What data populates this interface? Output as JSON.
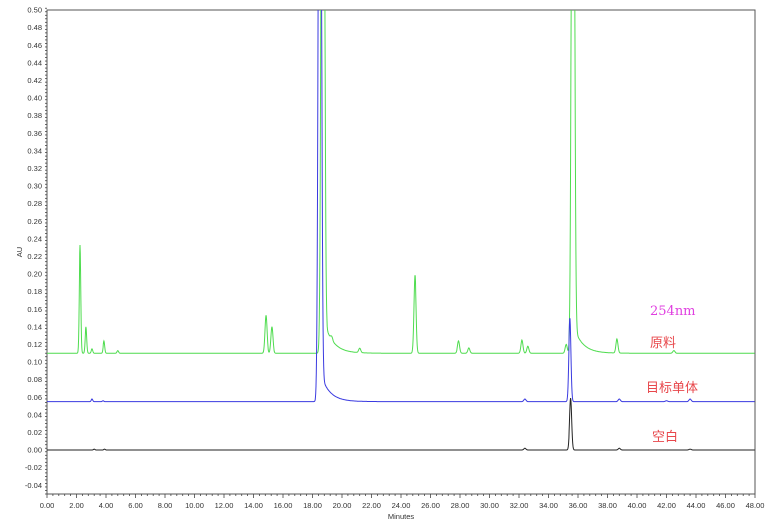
{
  "chart_data": {
    "type": "line",
    "xlabel": "Minutes",
    "ylabel": "AU",
    "xlim": [
      0,
      48
    ],
    "ylim": [
      -0.05,
      0.5
    ],
    "x_ticks": [
      0,
      2,
      4,
      6,
      8,
      10,
      12,
      14,
      16,
      18,
      20,
      22,
      24,
      26,
      28,
      30,
      32,
      34,
      36,
      38,
      40,
      42,
      44,
      46,
      48
    ],
    "y_ticks": [
      -0.04,
      -0.02,
      0.0,
      0.02,
      0.04,
      0.06,
      0.08,
      0.1,
      0.12,
      0.14,
      0.16,
      0.18,
      0.2,
      0.22,
      0.24,
      0.26,
      0.28,
      0.3,
      0.32,
      0.34,
      0.36,
      0.38,
      0.4,
      0.42,
      0.44,
      0.46,
      0.48,
      0.5
    ],
    "tick_decimals": 2,
    "grid": false,
    "annotations": [
      {
        "text": "254nm",
        "color": "#e040e0"
      },
      {
        "text": "原料",
        "color": "#e8474b"
      },
      {
        "text": "目标单体",
        "color": "#e8474b"
      },
      {
        "text": "空白",
        "color": "#e8474b"
      }
    ],
    "series": [
      {
        "label": "原料",
        "color": "#4fdc4f",
        "baseline": 0.11,
        "peaks": [
          [
            2.24,
            0.233
          ],
          [
            2.64,
            0.14
          ],
          [
            3.05,
            0.115
          ],
          [
            3.86,
            0.124
          ],
          [
            4.8,
            0.113
          ],
          [
            14.85,
            0.153
          ],
          [
            15.25,
            0.14
          ],
          [
            18.7,
            1.5
          ],
          [
            19.3,
            0.114
          ],
          [
            21.2,
            0.115
          ],
          [
            24.95,
            0.199
          ],
          [
            27.9,
            0.124
          ],
          [
            28.6,
            0.116
          ],
          [
            32.2,
            0.125
          ],
          [
            32.6,
            0.118
          ],
          [
            35.2,
            0.12
          ],
          [
            35.66,
            1.2
          ],
          [
            38.64,
            0.126
          ],
          [
            42.5,
            0.113
          ]
        ]
      },
      {
        "label": "目标单体",
        "color": "#3a3ae0",
        "baseline": 0.055,
        "peaks": [
          [
            3.05,
            0.058
          ],
          [
            3.8,
            0.056
          ],
          [
            18.5,
            1.2
          ],
          [
            32.4,
            0.058
          ],
          [
            35.45,
            0.15
          ],
          [
            38.8,
            0.058
          ],
          [
            42.0,
            0.056
          ],
          [
            43.6,
            0.058
          ]
        ]
      },
      {
        "label": "空白",
        "color": "#222222",
        "baseline": 0.0,
        "peaks": [
          [
            3.2,
            0.001
          ],
          [
            3.9,
            0.001
          ],
          [
            32.4,
            0.002
          ],
          [
            35.5,
            0.059
          ],
          [
            38.8,
            0.002
          ],
          [
            43.6,
            0.001
          ]
        ]
      }
    ]
  }
}
